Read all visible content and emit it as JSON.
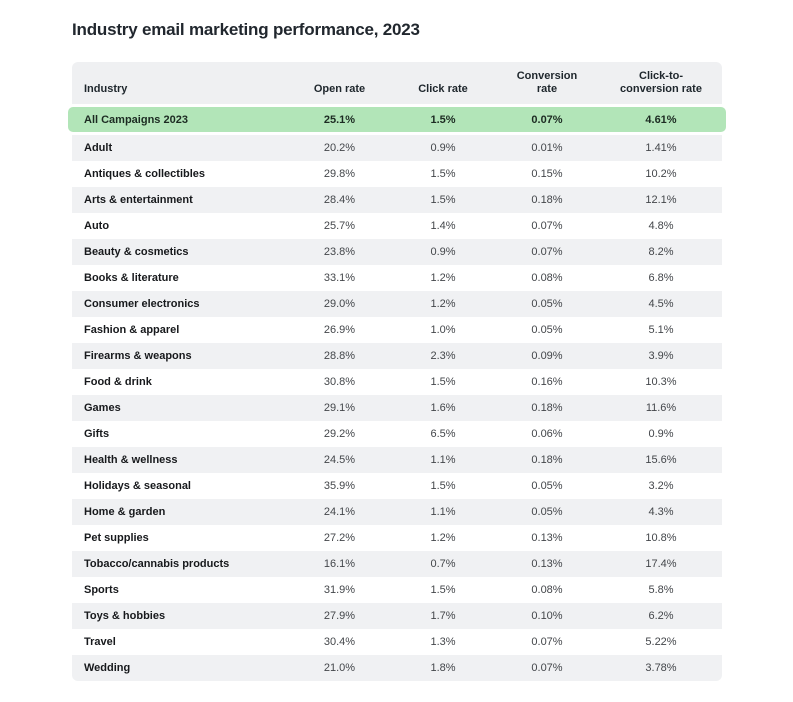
{
  "title": "Industry email marketing performance, 2023",
  "colors": {
    "highlight_green": "#b2e5b8",
    "row_stripe": "#f0f1f3",
    "header_bg": "#eff0f2",
    "title_text": "#21272e"
  },
  "table": {
    "columns": [
      "Industry",
      "Open rate",
      "Click rate",
      "Conversion rate",
      "Click-to-conversion rate"
    ],
    "highlight": [
      "All Campaigns 2023",
      "25.1%",
      "1.5%",
      "0.07%",
      "4.61%"
    ],
    "rows": [
      [
        "Adult",
        "20.2%",
        "0.9%",
        "0.01%",
        "1.41%"
      ],
      [
        "Antiques & collectibles",
        "29.8%",
        "1.5%",
        "0.15%",
        "10.2%"
      ],
      [
        "Arts & entertainment",
        "28.4%",
        "1.5%",
        "0.18%",
        "12.1%"
      ],
      [
        "Auto",
        "25.7%",
        "1.4%",
        "0.07%",
        "4.8%"
      ],
      [
        "Beauty & cosmetics",
        "23.8%",
        "0.9%",
        "0.07%",
        "8.2%"
      ],
      [
        "Books & literature",
        "33.1%",
        "1.2%",
        "0.08%",
        "6.8%"
      ],
      [
        "Consumer electronics",
        "29.0%",
        "1.2%",
        "0.05%",
        "4.5%"
      ],
      [
        "Fashion & apparel",
        "26.9%",
        "1.0%",
        "0.05%",
        "5.1%"
      ],
      [
        "Firearms & weapons",
        "28.8%",
        "2.3%",
        "0.09%",
        "3.9%"
      ],
      [
        "Food & drink",
        "30.8%",
        "1.5%",
        "0.16%",
        "10.3%"
      ],
      [
        "Games",
        "29.1%",
        "1.6%",
        "0.18%",
        "11.6%"
      ],
      [
        "Gifts",
        "29.2%",
        "6.5%",
        "0.06%",
        "0.9%"
      ],
      [
        "Health & wellness",
        "24.5%",
        "1.1%",
        "0.18%",
        "15.6%"
      ],
      [
        "Holidays & seasonal",
        "35.9%",
        "1.5%",
        "0.05%",
        "3.2%"
      ],
      [
        "Home & garden",
        "24.1%",
        "1.1%",
        "0.05%",
        "4.3%"
      ],
      [
        "Pet supplies",
        "27.2%",
        "1.2%",
        "0.13%",
        "10.8%"
      ],
      [
        "Tobacco/cannabis products",
        "16.1%",
        "0.7%",
        "0.13%",
        "17.4%"
      ],
      [
        "Sports",
        "31.9%",
        "1.5%",
        "0.08%",
        "5.8%"
      ],
      [
        "Toys & hobbies",
        "27.9%",
        "1.7%",
        "0.10%",
        "6.2%"
      ],
      [
        "Travel",
        "30.4%",
        "1.3%",
        "0.07%",
        "5.22%"
      ],
      [
        "Wedding",
        "21.0%",
        "1.8%",
        "0.07%",
        "3.78%"
      ]
    ]
  },
  "chart_data": {
    "type": "table",
    "title": "Industry email marketing performance, 2023",
    "columns": [
      "Industry",
      "Open rate",
      "Click rate",
      "Conversion rate",
      "Click-to-conversion rate"
    ],
    "highlighted_row": [
      "All Campaigns 2023",
      "25.1%",
      "1.5%",
      "0.07%",
      "4.61%"
    ],
    "rows": [
      [
        "Adult",
        "20.2%",
        "0.9%",
        "0.01%",
        "1.41%"
      ],
      [
        "Antiques & collectibles",
        "29.8%",
        "1.5%",
        "0.15%",
        "10.2%"
      ],
      [
        "Arts & entertainment",
        "28.4%",
        "1.5%",
        "0.18%",
        "12.1%"
      ],
      [
        "Auto",
        "25.7%",
        "1.4%",
        "0.07%",
        "4.8%"
      ],
      [
        "Beauty & cosmetics",
        "23.8%",
        "0.9%",
        "0.07%",
        "8.2%"
      ],
      [
        "Books & literature",
        "33.1%",
        "1.2%",
        "0.08%",
        "6.8%"
      ],
      [
        "Consumer electronics",
        "29.0%",
        "1.2%",
        "0.05%",
        "4.5%"
      ],
      [
        "Fashion & apparel",
        "26.9%",
        "1.0%",
        "0.05%",
        "5.1%"
      ],
      [
        "Firearms & weapons",
        "28.8%",
        "2.3%",
        "0.09%",
        "3.9%"
      ],
      [
        "Food & drink",
        "30.8%",
        "1.5%",
        "0.16%",
        "10.3%"
      ],
      [
        "Games",
        "29.1%",
        "1.6%",
        "0.18%",
        "11.6%"
      ],
      [
        "Gifts",
        "29.2%",
        "6.5%",
        "0.06%",
        "0.9%"
      ],
      [
        "Health & wellness",
        "24.5%",
        "1.1%",
        "0.18%",
        "15.6%"
      ],
      [
        "Holidays & seasonal",
        "35.9%",
        "1.5%",
        "0.05%",
        "3.2%"
      ],
      [
        "Home & garden",
        "24.1%",
        "1.1%",
        "0.05%",
        "4.3%"
      ],
      [
        "Pet supplies",
        "27.2%",
        "1.2%",
        "0.13%",
        "10.8%"
      ],
      [
        "Tobacco/cannabis products",
        "16.1%",
        "0.7%",
        "0.13%",
        "17.4%"
      ],
      [
        "Sports",
        "31.9%",
        "1.5%",
        "0.08%",
        "5.8%"
      ],
      [
        "Toys & hobbies",
        "27.9%",
        "1.7%",
        "0.10%",
        "6.2%"
      ],
      [
        "Travel",
        "30.4%",
        "1.3%",
        "0.07%",
        "5.22%"
      ],
      [
        "Wedding",
        "21.0%",
        "1.8%",
        "0.07%",
        "3.78%"
      ]
    ]
  }
}
